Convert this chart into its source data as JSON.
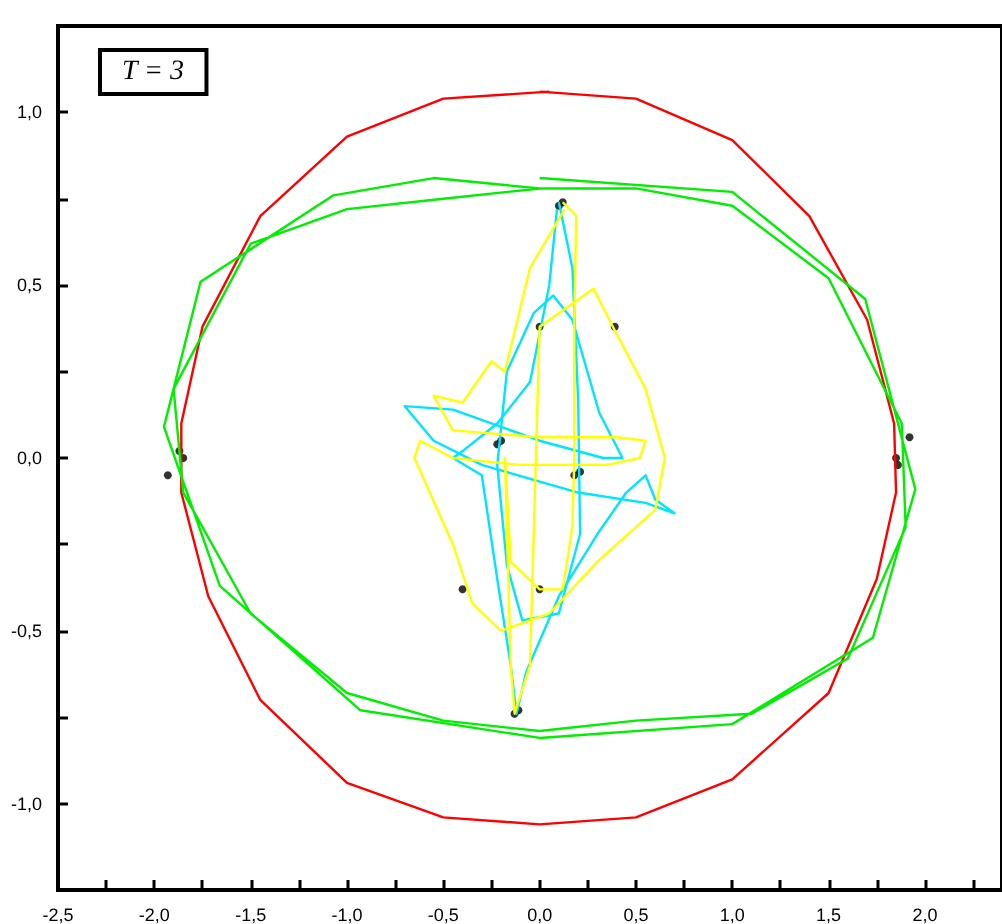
{
  "chart_data": {
    "type": "line",
    "annotations": [
      "T = 3"
    ],
    "grid": false,
    "xlim": [
      -2.5,
      2.4
    ],
    "ylim": [
      -1.25,
      1.25
    ],
    "xticks": [
      {
        "value": -2.5,
        "label": "-2,5"
      },
      {
        "value": -2.25,
        "label": null
      },
      {
        "value": -2,
        "label": "-2,0"
      },
      {
        "value": -1.75,
        "label": null
      },
      {
        "value": -1.5,
        "label": "-1,5"
      },
      {
        "value": -1.25,
        "label": null
      },
      {
        "value": -1,
        "label": "-1,0"
      },
      {
        "value": -0.75,
        "label": null
      },
      {
        "value": -0.5,
        "label": "-0,5"
      },
      {
        "value": -0.25,
        "label": null
      },
      {
        "value": 0,
        "label": "0,0"
      },
      {
        "value": 0.25,
        "label": null
      },
      {
        "value": 0.5,
        "label": "0,5"
      },
      {
        "value": 0.75,
        "label": null
      },
      {
        "value": 1,
        "label": "1,0"
      },
      {
        "value": 1.25,
        "label": null
      },
      {
        "value": 1.5,
        "label": "1,5"
      },
      {
        "value": 1.75,
        "label": null
      },
      {
        "value": 2,
        "label": "2,0"
      },
      {
        "value": 2.25,
        "label": null
      }
    ],
    "yticks": [
      {
        "value": -1,
        "label": "-1,0"
      },
      {
        "value": -0.75,
        "label": null
      },
      {
        "value": -0.5,
        "label": "-0,5"
      },
      {
        "value": -0.25,
        "label": null
      },
      {
        "value": 0,
        "label": "0,0"
      },
      {
        "value": 0.25,
        "label": null
      },
      {
        "value": 0.5,
        "label": "0,5"
      },
      {
        "value": 0.75,
        "label": null
      },
      {
        "value": 1,
        "label": "1,0"
      }
    ],
    "series": [
      {
        "color": "#ff0000",
        "x": [
          0,
          0.5,
          1.0,
          1.4,
          1.7,
          1.84,
          1.85,
          1.75,
          1.5,
          1.0,
          0.5,
          0,
          -0.5,
          -1.0,
          -1.45,
          -1.72,
          -1.86,
          -1.86,
          -1.75,
          -1.45,
          -1.0,
          -0.5,
          0.05
        ],
        "values": [
          1.06,
          1.04,
          0.92,
          0.7,
          0.4,
          0.1,
          -0.1,
          -0.35,
          -0.68,
          -0.93,
          -1.04,
          -1.06,
          -1.04,
          -0.94,
          -0.7,
          -0.4,
          -0.1,
          0.1,
          0.38,
          0.7,
          0.93,
          1.04,
          1.06
        ]
      },
      {
        "color": "#00ee00",
        "x": [
          0,
          1.0,
          1.69,
          1.95,
          1.73,
          1.0,
          0,
          -0.93,
          -1.66,
          -1.95,
          -1.76,
          -1.07,
          -0.55,
          0,
          0.5,
          1.0,
          1.5,
          1.88,
          1.9,
          1.6,
          1.1,
          0.5,
          0,
          -0.5,
          -1.0,
          -1.5,
          -1.85,
          -1.9,
          -1.5,
          -1.0,
          -0.5,
          0
        ],
        "values": [
          0.81,
          0.77,
          0.46,
          -0.09,
          -0.52,
          -0.77,
          -0.81,
          -0.73,
          -0.37,
          0.09,
          0.51,
          0.76,
          0.81,
          0.78,
          0.78,
          0.73,
          0.52,
          0.1,
          -0.2,
          -0.58,
          -0.74,
          -0.76,
          -0.79,
          -0.76,
          -0.68,
          -0.45,
          -0.1,
          0.2,
          0.62,
          0.72,
          0.75,
          0.78
        ]
      },
      {
        "color": "#00e5ff",
        "x": [
          0.1,
          0.17,
          0.2,
          0.21,
          0.1,
          -0.09,
          -0.17,
          -0.22,
          -0.17,
          -0.03,
          0.07,
          0.17,
          0.31,
          0.43,
          0.33,
          0.0,
          -0.45,
          -0.7,
          -0.55,
          -0.3,
          0.2,
          0.55,
          0.7,
          0.6,
          0.55,
          0.45,
          0.3,
          0.1,
          -0.07,
          -0.12,
          -0.15,
          -0.22,
          -0.3,
          -0.45,
          -0.4,
          -0.22,
          -0.05,
          0.05,
          0.09
        ],
        "values": [
          0.74,
          0.55,
          0.17,
          -0.22,
          -0.45,
          -0.47,
          -0.31,
          -0.02,
          0.25,
          0.42,
          0.47,
          0.4,
          0.13,
          0.0,
          0.0,
          0.05,
          0.14,
          0.15,
          0.05,
          -0.02,
          -0.1,
          -0.13,
          -0.16,
          -0.12,
          -0.05,
          -0.1,
          -0.22,
          -0.4,
          -0.62,
          -0.74,
          -0.6,
          -0.35,
          -0.05,
          0.0,
          0.02,
          0.1,
          0.22,
          0.5,
          0.72
        ]
      },
      {
        "color": "#ffff00",
        "x": [
          0.12,
          0.19,
          0.18,
          0.18,
          0.17,
          0.12,
          0.0,
          -0.15,
          -0.18,
          -0.15,
          -0.13,
          -0.05,
          0.0,
          0.28,
          0.38,
          0.55,
          0.65,
          0.6,
          0.5,
          0.3,
          0.05,
          -0.2,
          -0.35,
          -0.45,
          -0.65,
          -0.62,
          -0.45,
          -0.1,
          0.35,
          0.52,
          0.55,
          0.4,
          0.0,
          -0.45,
          -0.55,
          -0.4,
          -0.25,
          -0.18,
          -0.05,
          0.13
        ],
        "values": [
          0.74,
          0.7,
          0.4,
          0.0,
          -0.2,
          -0.38,
          -0.38,
          -0.3,
          0.0,
          -0.6,
          -0.74,
          -0.6,
          0.38,
          0.49,
          0.38,
          0.2,
          0.0,
          -0.15,
          -0.2,
          -0.3,
          -0.45,
          -0.5,
          -0.42,
          -0.25,
          0.0,
          0.05,
          0.0,
          -0.02,
          -0.02,
          0.0,
          0.05,
          0.06,
          0.06,
          0.08,
          0.18,
          0.16,
          0.28,
          0.25,
          0.55,
          0.72
        ]
      },
      {
        "type": "scatter",
        "color": "#000000",
        "x": [
          0.0,
          0.39,
          -0.2,
          -0.22,
          0.18,
          0.21,
          -0.4,
          0.0,
          0.12,
          0.1,
          -0.13,
          -0.11,
          -1.85,
          -1.87,
          -1.93,
          1.85,
          1.86,
          1.92
        ],
        "values": [
          0.38,
          0.38,
          0.05,
          0.04,
          -0.05,
          -0.04,
          -0.38,
          -0.38,
          0.74,
          0.73,
          -0.74,
          -0.73,
          0.0,
          0.02,
          -0.05,
          0.0,
          -0.02,
          0.06
        ]
      }
    ]
  }
}
